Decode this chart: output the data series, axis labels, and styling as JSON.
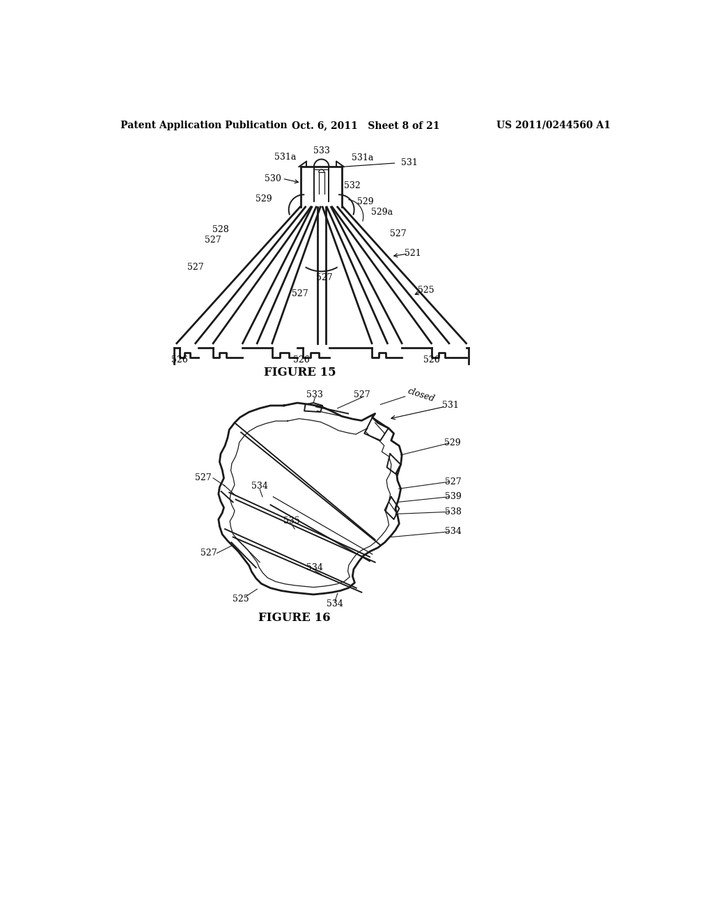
{
  "header_left": "Patent Application Publication",
  "header_center": "Oct. 6, 2011   Sheet 8 of 21",
  "header_right": "US 2011/0244560 A1",
  "figure15_label": "FIGURE 15",
  "figure16_label": "FIGURE 16",
  "bg_color": "#ffffff",
  "line_color": "#1a1a1a",
  "lw_thick": 2.0,
  "lw_med": 1.4,
  "lw_thin": 0.9,
  "font_size_header": 10,
  "font_size_label": 9,
  "font_size_figure": 12
}
